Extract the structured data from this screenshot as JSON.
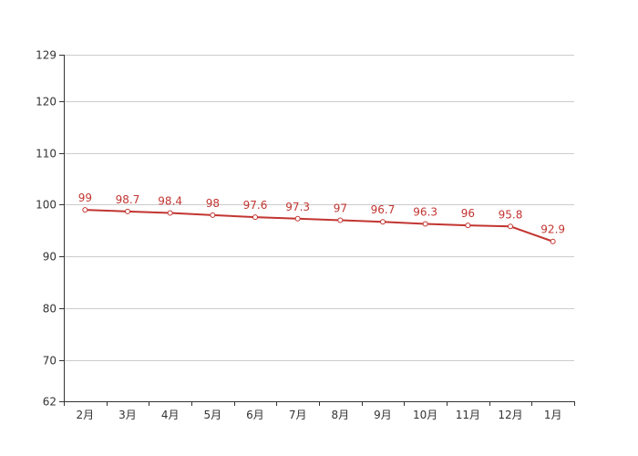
{
  "chart_data": {
    "type": "line",
    "categories": [
      "2月",
      "3月",
      "4月",
      "5月",
      "6月",
      "7月",
      "8月",
      "9月",
      "10月",
      "11月",
      "12月",
      "1月"
    ],
    "series": [
      {
        "values": [
          99,
          98.7,
          98.4,
          98,
          97.6,
          97.3,
          97,
          96.7,
          96.3,
          96,
          95.8,
          92.9
        ]
      }
    ],
    "y_ticks": [
      62,
      70,
      80,
      90,
      100,
      110,
      120,
      129
    ],
    "ylim": [
      62,
      129
    ],
    "grid": true,
    "legend": "none",
    "colors": {
      "series": "#c23531",
      "axis": "#333333",
      "grid": "#cccccc",
      "text": "#333333"
    }
  }
}
